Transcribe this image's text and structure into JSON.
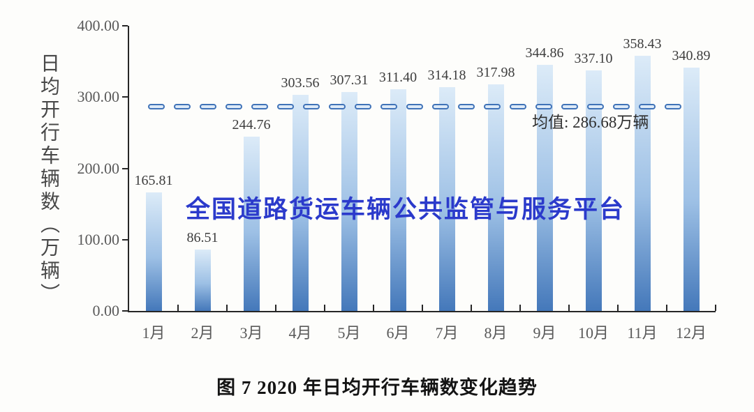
{
  "chart_data": {
    "type": "bar",
    "categories": [
      "1月",
      "2月",
      "3月",
      "4月",
      "5月",
      "6月",
      "7月",
      "8月",
      "9月",
      "10月",
      "11月",
      "12月"
    ],
    "values": [
      165.81,
      86.51,
      244.76,
      303.56,
      307.31,
      311.4,
      314.18,
      317.98,
      344.86,
      337.1,
      358.43,
      340.89
    ],
    "value_labels": [
      "165.81",
      "86.51",
      "244.76",
      "303.56",
      "307.31",
      "311.40",
      "314.18",
      "317.98",
      "344.86",
      "337.10",
      "358.43",
      "340.89"
    ],
    "ylabel": "日均开行车辆数（万辆）",
    "xlabel": "",
    "ylim": [
      0,
      400
    ],
    "yticks": [
      0,
      100,
      200,
      300,
      400
    ],
    "ytick_labels": [
      "0.00",
      "100.00",
      "200.00",
      "300.00",
      "400.00"
    ],
    "grid": false,
    "legend": null,
    "mean_line": {
      "value": 286.68,
      "label": "均值: 286.68万辆",
      "color": "#4073b8"
    },
    "bar_gradient": [
      "#dcebf8",
      "#9dc0e5",
      "#4478ba"
    ],
    "axis_color": "#262626"
  },
  "watermark": {
    "text": "全国道路货运车辆公共监管与服务平台",
    "color": "#2b3acb"
  },
  "caption": {
    "text": "图 7  2020 年日均开行车辆数变化趋势"
  }
}
